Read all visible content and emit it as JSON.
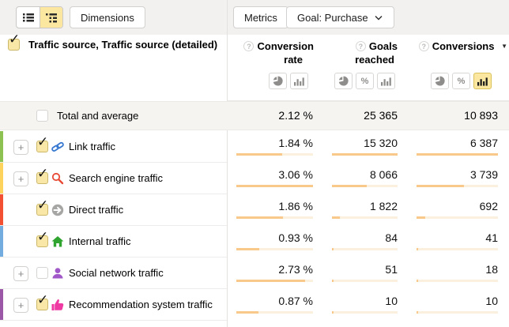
{
  "toolbar": {
    "dimensions": "Dimensions",
    "metrics": "Metrics",
    "goal": "Goal: Purchase"
  },
  "view_toggle": {
    "options": [
      "list-view",
      "tree-view"
    ],
    "active": "tree-view"
  },
  "table": {
    "dimension_header": "Traffic source, Traffic source (detailed)",
    "dimension_checked": true,
    "columns": [
      {
        "id": "conversion_rate",
        "line1": "Conversion",
        "line2": "rate",
        "toggles": [
          "pie",
          "bars"
        ],
        "active_toggle": null
      },
      {
        "id": "goals_reached",
        "line1": "Goals",
        "line2": "reached",
        "toggles": [
          "pie",
          "percent",
          "bars"
        ],
        "active_toggle": null
      },
      {
        "id": "conversions",
        "line1": "Conversions",
        "line2": "",
        "sorted": "desc",
        "toggles": [
          "pie",
          "percent",
          "bars"
        ],
        "active_toggle": "bars"
      }
    ],
    "percent_glyph": "%",
    "plus_glyph": "+",
    "help_glyph": "?",
    "sort_glyph": "▼",
    "total_row": {
      "label": "Total and average",
      "checked": false,
      "values": [
        "2.12 %",
        "25 365",
        "10 893"
      ]
    },
    "rows": [
      {
        "label": "Link traffic",
        "icon": "link-icon",
        "color": "#8dc152",
        "expandable": true,
        "checked": true,
        "values": [
          "1.84 %",
          "15 320",
          "6 387"
        ],
        "numbers": [
          1.84,
          15320,
          6387
        ]
      },
      {
        "label": "Search engine traffic",
        "icon": "search-icon",
        "color": "#fdd35e",
        "expandable": true,
        "checked": true,
        "values": [
          "3.06 %",
          "8 066",
          "3 739"
        ],
        "numbers": [
          3.06,
          8066,
          3739
        ]
      },
      {
        "label": "Direct traffic",
        "icon": "direct-arrow-icon",
        "color": "#f45133",
        "expandable": false,
        "checked": true,
        "values": [
          "1.86 %",
          "1 822",
          "692"
        ],
        "numbers": [
          1.86,
          1822,
          692
        ]
      },
      {
        "label": "Internal traffic",
        "icon": "home-icon",
        "color": "#73acdf",
        "expandable": false,
        "checked": true,
        "values": [
          "0.93 %",
          "84",
          "41"
        ],
        "numbers": [
          0.93,
          84,
          41
        ]
      },
      {
        "label": "Social network traffic",
        "icon": "person-icon",
        "color": null,
        "expandable": true,
        "checked": false,
        "values": [
          "2.73 %",
          "51",
          "18"
        ],
        "numbers": [
          2.73,
          51,
          18
        ]
      },
      {
        "label": "Recommendation system traffic",
        "icon": "thumbs-up-icon",
        "color": "#9b58a6",
        "expandable": true,
        "checked": true,
        "values": [
          "0.87 %",
          "10",
          "10"
        ],
        "numbers": [
          0.87,
          10,
          10
        ]
      }
    ],
    "colors": {
      "bar_fill": "#f9c98c",
      "bar_track": "#fbf0de",
      "selected_yellow": "#fbe7a0",
      "checkbox_yellow": "#f8e7a6",
      "toolbar_bg": "#f2f1ef",
      "total_row_bg": "#f5f4f1"
    }
  }
}
